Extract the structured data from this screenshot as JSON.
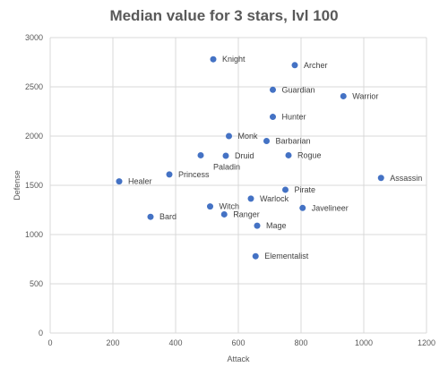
{
  "chart_data": {
    "type": "scatter",
    "title": "Median value for 3 stars, lvl 100",
    "xlabel": "Attack",
    "ylabel": "Defense",
    "xlim": [
      0,
      1200
    ],
    "ylim": [
      0,
      3000
    ],
    "xticks": [
      0,
      200,
      400,
      600,
      800,
      1000,
      1200
    ],
    "yticks": [
      0,
      500,
      1000,
      1500,
      2000,
      2500,
      3000
    ],
    "grid": true,
    "legend": "none",
    "marker_color": "#4472c4",
    "points": [
      {
        "label": "Knight",
        "x": 520,
        "y": 2780
      },
      {
        "label": "Archer",
        "x": 780,
        "y": 2720
      },
      {
        "label": "Guardian",
        "x": 710,
        "y": 2470
      },
      {
        "label": "Warrior",
        "x": 935,
        "y": 2405
      },
      {
        "label": "Hunter",
        "x": 710,
        "y": 2195
      },
      {
        "label": "Monk",
        "x": 570,
        "y": 2000
      },
      {
        "label": "Barbarian",
        "x": 690,
        "y": 1950
      },
      {
        "label": "Druid",
        "x": 560,
        "y": 1800
      },
      {
        "label": "Rogue",
        "x": 760,
        "y": 1805
      },
      {
        "label": "Paladin",
        "x": 480,
        "y": 1805
      },
      {
        "label": "Princess",
        "x": 380,
        "y": 1610
      },
      {
        "label": "Healer",
        "x": 220,
        "y": 1540
      },
      {
        "label": "Assassin",
        "x": 1055,
        "y": 1575
      },
      {
        "label": "Pirate",
        "x": 750,
        "y": 1455
      },
      {
        "label": "Warlock",
        "x": 640,
        "y": 1365
      },
      {
        "label": "Witch",
        "x": 510,
        "y": 1285
      },
      {
        "label": "Javelineer",
        "x": 805,
        "y": 1270
      },
      {
        "label": "Ranger",
        "x": 555,
        "y": 1205
      },
      {
        "label": "Bard",
        "x": 320,
        "y": 1180
      },
      {
        "label": "Mage",
        "x": 660,
        "y": 1090
      },
      {
        "label": "Elementalist",
        "x": 655,
        "y": 780
      }
    ]
  }
}
